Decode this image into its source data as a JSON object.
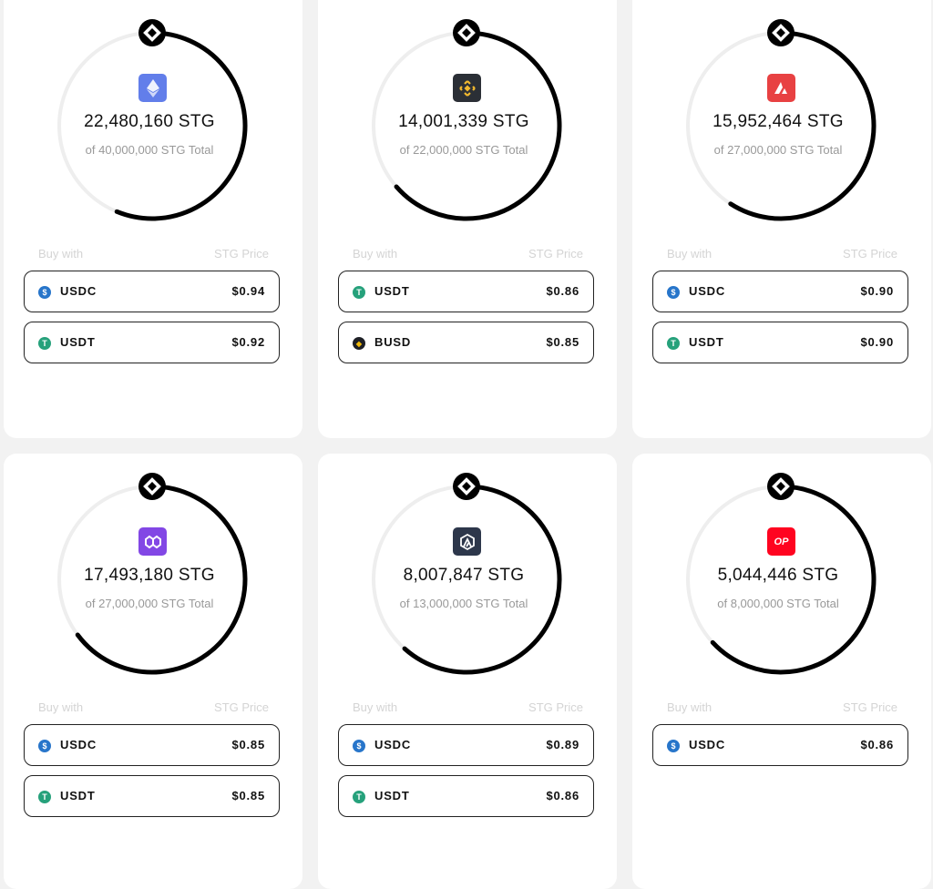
{
  "colors": {
    "ring": "#000000",
    "track": "#eeeeee",
    "muted": "#999999"
  },
  "labels": {
    "buy_with": "Buy with",
    "stg_price": "STG Price"
  },
  "pools": [
    {
      "chain": "ethereum",
      "chain_icon": "ethereum-icon",
      "chain_color": "#627EEA",
      "amount": "22,480,160 STG",
      "total": "of 40,000,000 STG Total",
      "progress": 0.562,
      "options": [
        {
          "token": "USDC",
          "icon": "usdc-icon",
          "price": "$0.94"
        },
        {
          "token": "USDT",
          "icon": "usdt-icon",
          "price": "$0.92"
        }
      ]
    },
    {
      "chain": "bnb-chain",
      "chain_icon": "bnb-icon",
      "chain_color": "#2B2F36",
      "amount": "14,001,339 STG",
      "total": "of 22,000,000 STG Total",
      "progress": 0.636,
      "options": [
        {
          "token": "USDT",
          "icon": "usdt-icon",
          "price": "$0.86"
        },
        {
          "token": "BUSD",
          "icon": "busd-icon",
          "price": "$0.85"
        }
      ]
    },
    {
      "chain": "avalanche",
      "chain_icon": "avalanche-icon",
      "chain_color": "#E84142",
      "amount": "15,952,464 STG",
      "total": "of 27,000,000 STG Total",
      "progress": 0.591,
      "options": [
        {
          "token": "USDC",
          "icon": "usdc-icon",
          "price": "$0.90"
        },
        {
          "token": "USDT",
          "icon": "usdt-icon",
          "price": "$0.90"
        }
      ]
    },
    {
      "chain": "polygon",
      "chain_icon": "polygon-icon",
      "chain_color": "#8247E5",
      "amount": "17,493,180 STG",
      "total": "of 27,000,000 STG Total",
      "progress": 0.648,
      "options": [
        {
          "token": "USDC",
          "icon": "usdc-icon",
          "price": "$0.85"
        },
        {
          "token": "USDT",
          "icon": "usdt-icon",
          "price": "$0.85"
        }
      ]
    },
    {
      "chain": "arbitrum",
      "chain_icon": "arbitrum-icon",
      "chain_color": "#2D374B",
      "amount": "8,007,847 STG",
      "total": "of 13,000,000 STG Total",
      "progress": 0.616,
      "options": [
        {
          "token": "USDC",
          "icon": "usdc-icon",
          "price": "$0.89"
        },
        {
          "token": "USDT",
          "icon": "usdt-icon",
          "price": "$0.86"
        }
      ]
    },
    {
      "chain": "optimism",
      "chain_icon": "optimism-icon",
      "chain_color": "#FF0420",
      "chain_text": "OP",
      "amount": "5,044,446 STG",
      "total": "of 8,000,000 STG Total",
      "progress": 0.631,
      "options": [
        {
          "token": "USDC",
          "icon": "usdc-icon",
          "price": "$0.86"
        }
      ]
    }
  ]
}
